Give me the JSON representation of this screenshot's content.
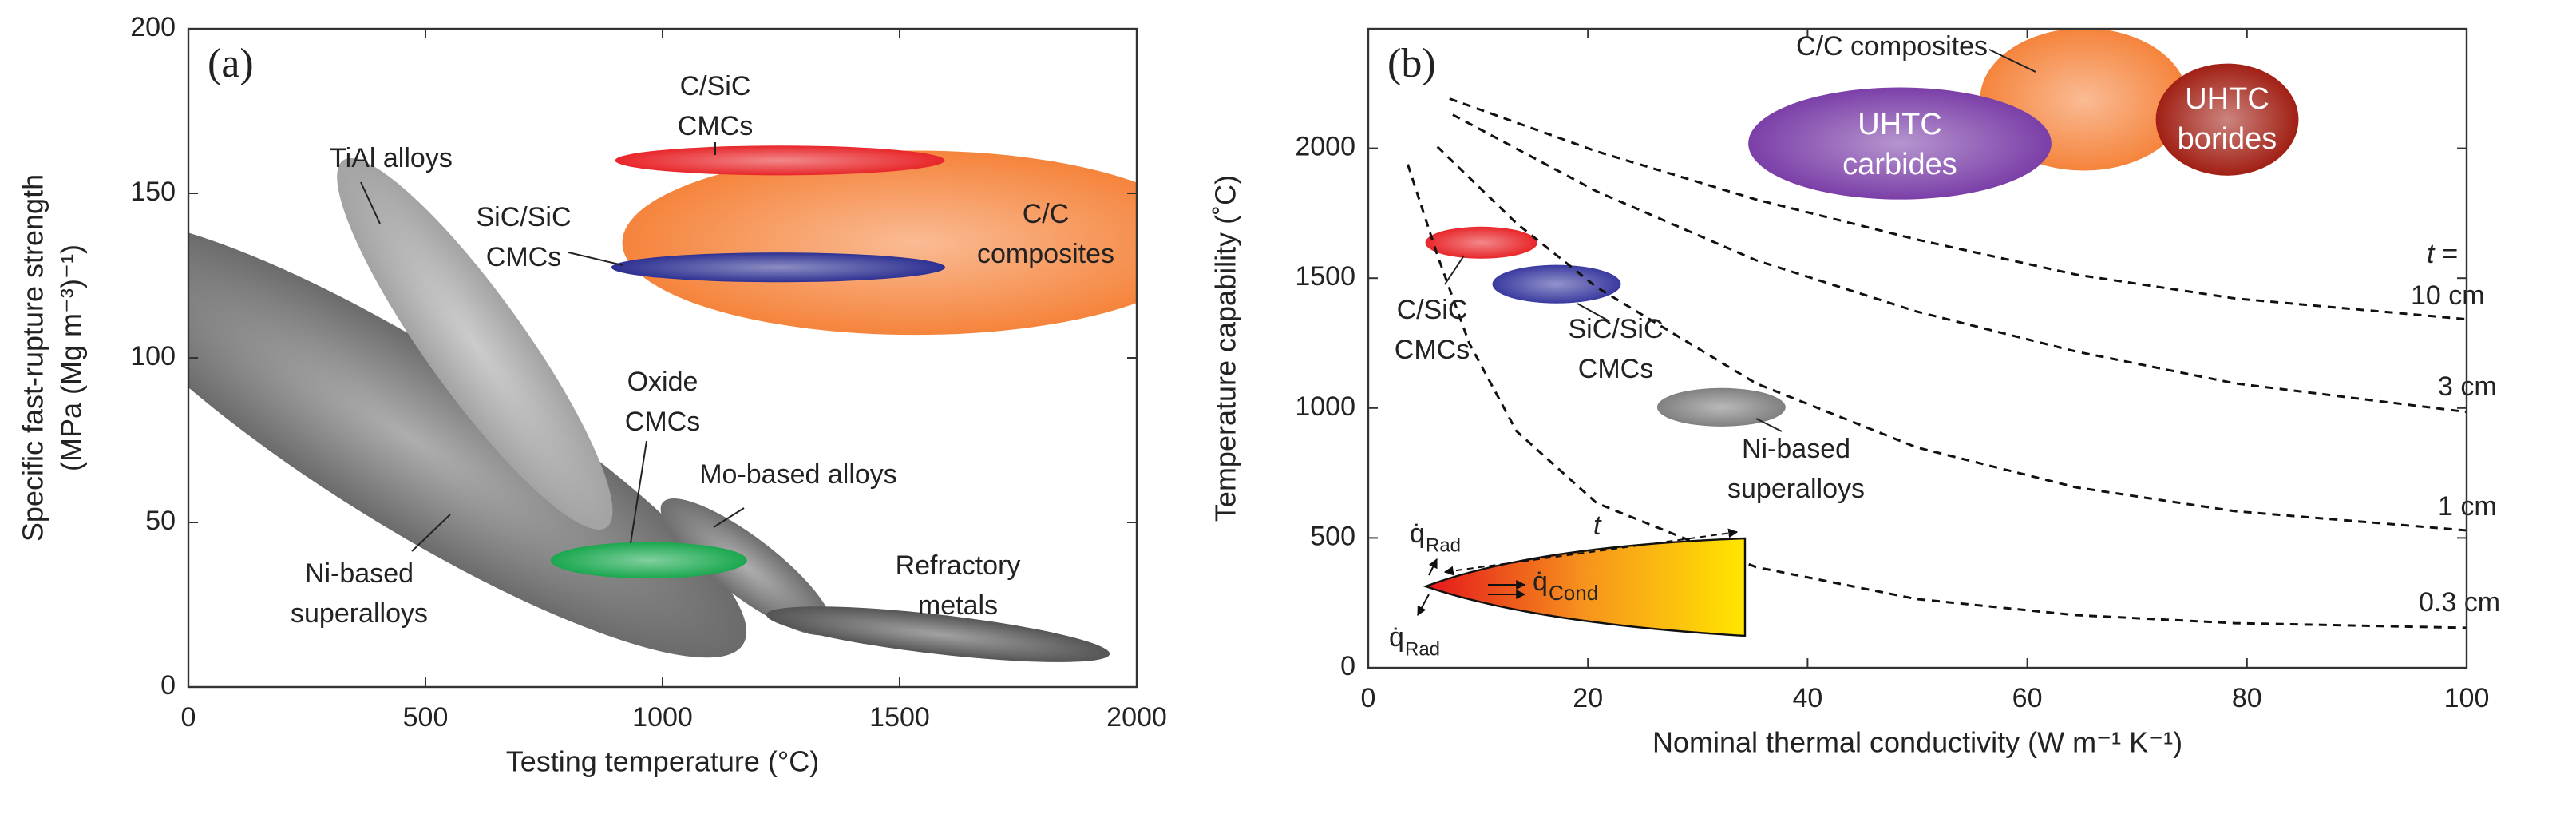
{
  "chart_data": [
    {
      "type": "region",
      "panel_label": "(a)",
      "x_label": "Testing temperature (°C)",
      "y_label": [
        "Specific fast-rupture strength",
        "(MPa (Mg m⁻³)⁻¹)"
      ],
      "xlim": [
        0,
        2000
      ],
      "xticks": [
        0,
        500,
        1000,
        1500,
        2000
      ],
      "ylim": [
        0,
        200
      ],
      "yticks": [
        0,
        50,
        100,
        150,
        200
      ],
      "regions": [
        {
          "label": [
            "Ni-based",
            "superalloys"
          ],
          "color": "#6b6b6b",
          "x": [
            -230,
            1170
          ],
          "y": [
            138,
            13
          ],
          "spread": 27
        },
        {
          "label": [
            "TiAl alloys"
          ],
          "color": "#a3a3a3",
          "x": [
            326,
            882
          ],
          "y": [
            160,
            48.5
          ],
          "spread": 15
        },
        {
          "label": [
            "Mo-based alloys"
          ],
          "color": "#6e6e6e",
          "x": [
            1000,
            1354
          ],
          "y": [
            56,
            17
          ],
          "spread": 9
        },
        {
          "label": [
            "Refractory",
            "metals"
          ],
          "color": "#555555",
          "x": [
            1219,
            1943
          ],
          "y": [
            22,
            10
          ],
          "spread": 6
        },
        {
          "label": [
            "C/C",
            "composites"
          ],
          "color": "#f5843c",
          "x": [
            915,
            2150
          ],
          "y": [
            107,
            163
          ]
        },
        {
          "label": [
            "C/SiC",
            "CMCs"
          ],
          "color": "#e8262a",
          "x": [
            900,
            1595
          ],
          "y": [
            155.5,
            164.5
          ]
        },
        {
          "label": [
            "SiC/SiC",
            "CMCs"
          ],
          "color": "#2e3192",
          "x": [
            892,
            1596
          ],
          "y": [
            123,
            132
          ]
        },
        {
          "label": [
            "Oxide",
            "CMCs"
          ],
          "color": "#1aa84f",
          "x": [
            764,
            1178
          ],
          "y": [
            33,
            44
          ]
        }
      ]
    },
    {
      "type": "region",
      "panel_label": "(b)",
      "x_label": "Nominal thermal conductivity (W m⁻¹ K⁻¹)",
      "y_label": [
        "Temperature capability (˚C)"
      ],
      "xlim": [
        0,
        100
      ],
      "xticks": [
        0,
        20,
        40,
        60,
        80,
        100
      ],
      "ylim": [
        0,
        2460
      ],
      "yticks": [
        0,
        500,
        1000,
        1500,
        2000
      ],
      "curve_prefix": "t =",
      "series": [
        {
          "name": "10 cm",
          "color": "#111111",
          "x": [
            7.4,
            20.8,
            35.3,
            49.9,
            64.4,
            78.9,
            100
          ],
          "values": [
            2191,
            1988,
            1803,
            1649,
            1514,
            1422,
            1342
          ]
        },
        {
          "name": "3 cm",
          "color": "#111111",
          "x": [
            7.7,
            20.8,
            35.3,
            49.9,
            64.4,
            78.9,
            100
          ],
          "values": [
            2129,
            1834,
            1569,
            1372,
            1218,
            1095,
            985
          ]
        },
        {
          "name": "1 cm",
          "color": "#111111",
          "x": [
            6.3,
            13.5,
            20.8,
            35.3,
            49.9,
            64.4,
            78.9,
            100
          ],
          "values": [
            2006,
            1711,
            1465,
            1095,
            849,
            695,
            603,
            529
          ]
        },
        {
          "name": "0.3 cm",
          "color": "#111111",
          "x": [
            3.6,
            6.3,
            9.2,
            13.5,
            20.8,
            35.3,
            49.9,
            64.4,
            78.9,
            100
          ],
          "values": [
            1938,
            1588,
            1249,
            911,
            634,
            388,
            265,
            203,
            172,
            154
          ]
        }
      ],
      "regions": [
        {
          "label": [
            "C/SiC",
            "CMCs"
          ],
          "color": "#e8262a",
          "x": [
            5.2,
            15.4
          ],
          "y": [
            1575,
            1698
          ]
        },
        {
          "label": [
            "SiC/SiC",
            "CMCs"
          ],
          "color": "#3a3aa0",
          "x": [
            11.3,
            23.0
          ],
          "y": [
            1403,
            1551
          ]
        },
        {
          "label": [
            "Ni-based",
            "superalloys"
          ],
          "color": "#808080",
          "x": [
            26.3,
            38.0
          ],
          "y": [
            929,
            1077
          ]
        },
        {
          "label": [
            "C/C composites"
          ],
          "color": "#f5843c",
          "x": [
            55.7,
            74.6
          ],
          "y": [
            1914,
            2462
          ]
        },
        {
          "label": [
            "UHTC",
            "carbides"
          ],
          "color": "#7b3fa8",
          "x": [
            34.6,
            62.2
          ],
          "y": [
            1803,
            2234
          ]
        },
        {
          "label": [
            "UHTC",
            "borides"
          ],
          "color": "#a11f14",
          "x": [
            71.7,
            84.7
          ],
          "y": [
            1895,
            2326
          ]
        }
      ],
      "inset": {
        "flux_symbol": "q̇",
        "rad": "Rad",
        "cond": "Cond",
        "thickness": "t"
      }
    }
  ]
}
